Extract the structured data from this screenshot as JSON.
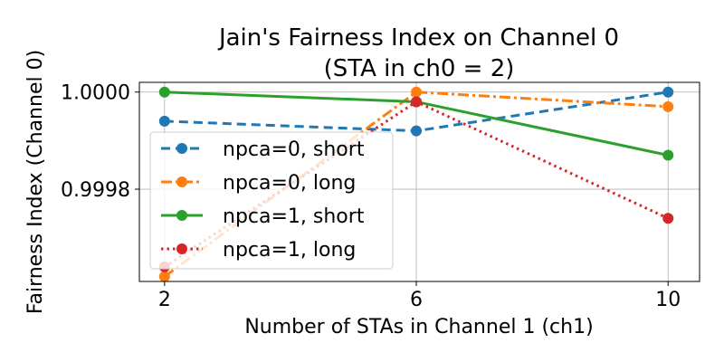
{
  "chart_data": {
    "type": "line",
    "title": "Jain's Fairness Index on Channel 0",
    "subtitle": "(STA in ch0 = 2)",
    "xlabel": "Number of STAs in Channel 1 (ch1)",
    "ylabel": "Fairness Index (Channel 0)",
    "x": [
      2,
      6,
      10
    ],
    "x_ticks": [
      "2",
      "6",
      "10"
    ],
    "y_ticks": [
      {
        "value": 0.9998,
        "label": "0.9998"
      },
      {
        "value": 1.0,
        "label": "1.0000"
      }
    ],
    "xlim": [
      1.6,
      10.5
    ],
    "ylim": [
      0.99961,
      1.00002
    ],
    "grid": true,
    "legend_position": "center-left",
    "series": [
      {
        "name": "npca=0, short",
        "values": [
          0.99994,
          0.99992,
          1.0
        ],
        "color": "#1f77b4",
        "dash": "dashed"
      },
      {
        "name": "npca=0, long",
        "values": [
          0.99962,
          1.0,
          0.99997
        ],
        "color": "#ff7f0e",
        "dash": "dashdot"
      },
      {
        "name": "npca=1, short",
        "values": [
          1.0,
          0.99998,
          0.99987
        ],
        "color": "#2ca02c",
        "dash": "solid"
      },
      {
        "name": "npca=1, long",
        "values": [
          0.99964,
          0.99998,
          0.99974
        ],
        "color": "#d62728",
        "dash": "dotted"
      }
    ]
  }
}
